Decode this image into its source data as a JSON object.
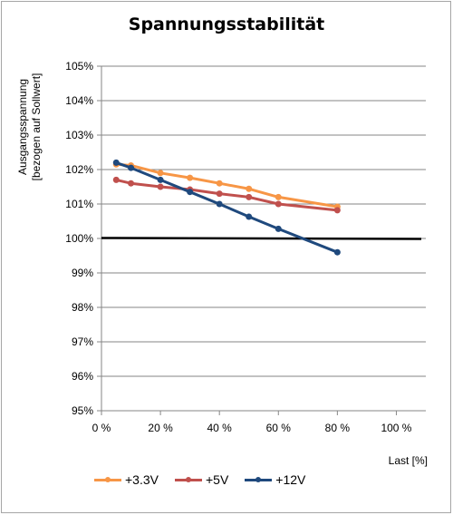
{
  "chart_data": {
    "type": "line",
    "title": "Spannungsstabilität",
    "ylabel_lines": [
      "Ausgangsspannung",
      "[bezogen auf Sollwert]"
    ],
    "xlabel": "Last [%]",
    "xlim": [
      0,
      110
    ],
    "ylim": [
      95,
      105
    ],
    "x_ticks": [
      0,
      20,
      40,
      60,
      80,
      100
    ],
    "x_tick_labels": [
      "0 %",
      "20 %",
      "40 %",
      "60 %",
      "80 %",
      "100 %"
    ],
    "y_ticks": [
      95,
      96,
      97,
      98,
      99,
      100,
      101,
      102,
      103,
      104,
      105
    ],
    "y_tick_labels": [
      "95%",
      "96%",
      "97%",
      "98%",
      "99%",
      "100%",
      "101%",
      "102%",
      "103%",
      "104%",
      "105%"
    ],
    "grid": "horizontal",
    "legend_position": "bottom",
    "reference_line": {
      "y": 100,
      "color": "#000000"
    },
    "series": [
      {
        "name": "+3.3V",
        "color": "#f79646",
        "x": [
          5,
          10,
          20,
          30,
          40,
          50,
          60,
          80
        ],
        "y": [
          102.15,
          102.12,
          101.9,
          101.76,
          101.6,
          101.44,
          101.2,
          100.92
        ]
      },
      {
        "name": "+5V",
        "color": "#c0504d",
        "x": [
          5,
          10,
          20,
          30,
          40,
          50,
          60,
          80
        ],
        "y": [
          101.7,
          101.6,
          101.5,
          101.42,
          101.3,
          101.2,
          101.0,
          100.82
        ]
      },
      {
        "name": "+12V",
        "color": "#1f497d",
        "x": [
          5,
          10,
          20,
          30,
          40,
          50,
          60,
          80
        ],
        "y": [
          102.2,
          102.05,
          101.7,
          101.35,
          101.0,
          100.63,
          100.28,
          99.6
        ]
      }
    ]
  }
}
